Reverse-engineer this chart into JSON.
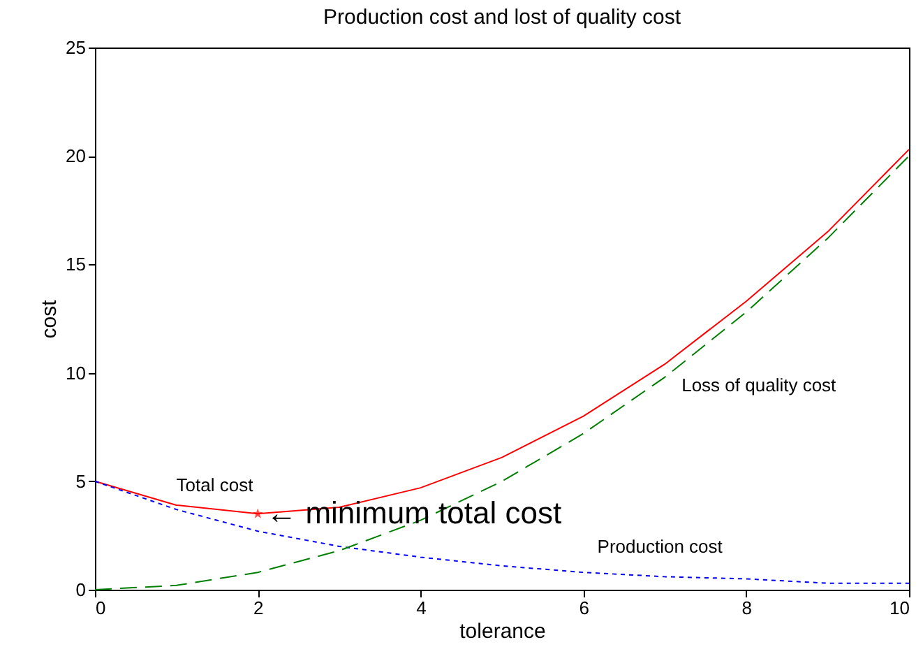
{
  "chart_data": {
    "type": "line",
    "title": "Production cost and lost of quality cost",
    "xlabel": "tolerance",
    "ylabel": "cost",
    "x": [
      0,
      1,
      2,
      3,
      4,
      5,
      6,
      7,
      8,
      9,
      10
    ],
    "series": [
      {
        "name": "Total cost",
        "color": "#ff0000",
        "line_style": "solid",
        "values": [
          5,
          3.9,
          3.5,
          3.8,
          4.7,
          6.1,
          8.0,
          10.4,
          13.3,
          16.5,
          20.3
        ]
      },
      {
        "name": "Production cost",
        "color": "#0000ff",
        "line_style": "dotted",
        "values": [
          5,
          3.7,
          2.7,
          2.0,
          1.5,
          1.1,
          0.8,
          0.6,
          0.5,
          0.3,
          0.3
        ]
      },
      {
        "name": "Loss of quality cost",
        "color": "#008000",
        "line_style": "dashed",
        "values": [
          0,
          0.2,
          0.8,
          1.8,
          3.2,
          5,
          7.2,
          9.8,
          12.8,
          16.2,
          20
        ]
      },
      {
        "type": "scatter",
        "marker": "star",
        "color": "#ff0000",
        "x": [
          2
        ],
        "values": [
          3.5
        ]
      }
    ],
    "annotations": [
      {
        "text": "← minimum total cost",
        "x": 2,
        "y": 3.5
      }
    ],
    "xlim": [
      0,
      10
    ],
    "xticks": [
      0,
      2,
      4,
      6,
      8,
      10
    ],
    "ylim": [
      0,
      25
    ],
    "yticks": [
      0,
      5,
      10,
      15,
      20,
      25
    ],
    "grid": false
  }
}
